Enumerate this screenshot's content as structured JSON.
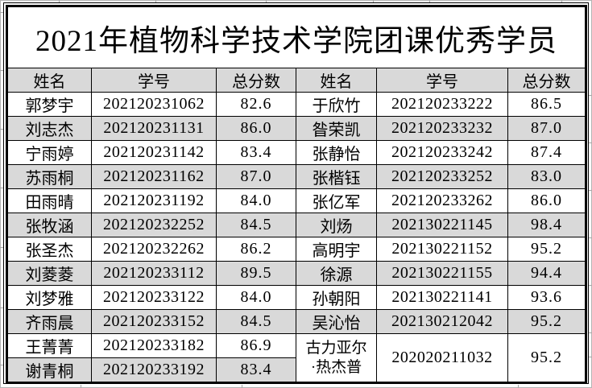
{
  "page_title": "2021年植物科学技术学院团课优秀学员",
  "table": {
    "columns": [
      "姓名",
      "学号",
      "总分数",
      "姓名",
      "学号",
      "总分数"
    ],
    "rows": [
      {
        "l": {
          "name": "郭梦宇",
          "id": "202120231062",
          "score": "82.6"
        },
        "r": {
          "name": "于欣竹",
          "id": "202120233222",
          "score": "86.5"
        }
      },
      {
        "l": {
          "name": "刘志杰",
          "id": "202120231131",
          "score": "86.0"
        },
        "r": {
          "name": "昝荣凯",
          "id": "202120233232",
          "score": "87.0"
        }
      },
      {
        "l": {
          "name": "宁雨婷",
          "id": "202120231142",
          "score": "83.4"
        },
        "r": {
          "name": "张静怡",
          "id": "202120233242",
          "score": "87.4"
        }
      },
      {
        "l": {
          "name": "苏雨桐",
          "id": "202120231162",
          "score": "87.0"
        },
        "r": {
          "name": "张楷钰",
          "id": "202120233252",
          "score": "83.0"
        }
      },
      {
        "l": {
          "name": "田雨晴",
          "id": "202120231192",
          "score": "84.0"
        },
        "r": {
          "name": "张亿军",
          "id": "202120233262",
          "score": "86.0"
        }
      },
      {
        "l": {
          "name": "张牧涵",
          "id": "202120232252",
          "score": "84.5"
        },
        "r": {
          "name": "刘炀",
          "id": "202130221145",
          "score": "98.4"
        }
      },
      {
        "l": {
          "name": "张圣杰",
          "id": "202120232262",
          "score": "86.2"
        },
        "r": {
          "name": "高明宇",
          "id": "202130221152",
          "score": "95.2"
        }
      },
      {
        "l": {
          "name": "刘菱菱",
          "id": "202120233112",
          "score": "89.5"
        },
        "r": {
          "name": "徐源",
          "id": "202130221155",
          "score": "94.4"
        }
      },
      {
        "l": {
          "name": "刘梦雅",
          "id": "202120233122",
          "score": "84.0"
        },
        "r": {
          "name": "孙朝阳",
          "id": "202130221141",
          "score": "93.6"
        }
      },
      {
        "l": {
          "name": "齐雨晨",
          "id": "202120233152",
          "score": "84.5"
        },
        "r": {
          "name": "吴沁怡",
          "id": "202130212042",
          "score": "95.2"
        }
      },
      {
        "l": {
          "name": "王菁菁",
          "id": "202120233182",
          "score": "86.9"
        },
        "r": {
          "name": "古力亚尔\n·热杰普",
          "id": "202020211032",
          "score": "95.2"
        },
        "r_span": 2
      },
      {
        "l": {
          "name": "谢青桐",
          "id": "202120233192",
          "score": "83.4"
        },
        "r": null
      }
    ]
  },
  "colors": {
    "background": "#ffffff",
    "stripe": "#d9d9d9",
    "header_bg": "#d9d9d9",
    "border": "#000000",
    "text": "#000000",
    "edge_gridline": "#b4b4b4"
  }
}
